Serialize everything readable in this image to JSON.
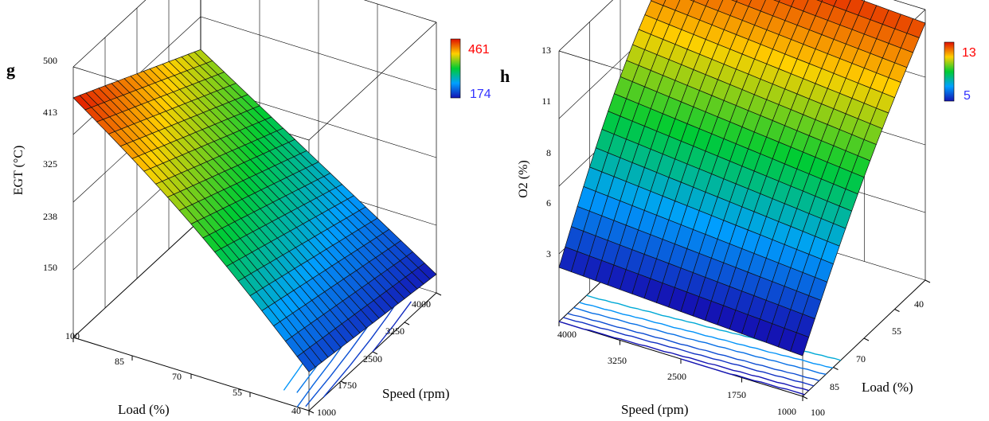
{
  "chart_data": [
    {
      "panel_label": "g",
      "type": "surface3d",
      "zlabel": "EGT (°C)",
      "xlabel": "Load (%)",
      "ylabel": "Speed (rpm)",
      "x_ticks": [
        "100",
        "85",
        "70",
        "55",
        "40"
      ],
      "y_ticks": [
        "1000",
        "1750",
        "2500",
        "3250",
        "4000"
      ],
      "z_ticks": [
        "150",
        "238",
        "325",
        "413",
        "500"
      ],
      "zlim": [
        150,
        500
      ],
      "colorbar": {
        "max": "461",
        "min": "174",
        "max_color": "#ff0000",
        "min_color": "#3333ff"
      },
      "surface_corners": {
        "load100_speed1000": 460,
        "load100_speed4000": 370,
        "load40_speed1000": 200,
        "load40_speed4000": 174
      }
    },
    {
      "panel_label": "h",
      "type": "surface3d",
      "zlabel": "O2 (%)",
      "xlabel": "Load (%)",
      "ylabel": "Speed (rpm)",
      "x_ticks": [
        "40",
        "55",
        "70",
        "85",
        "100"
      ],
      "y_ticks": [
        "4000",
        "3250",
        "2500",
        "1750",
        "1000"
      ],
      "z_ticks": [
        "3",
        "6",
        "8",
        "11",
        "13"
      ],
      "zlim": [
        3,
        13
      ],
      "colorbar": {
        "max": "13",
        "min": "5",
        "max_color": "#ff0000",
        "min_color": "#3333ff"
      },
      "surface_corners": {
        "load40_speed4000": 13,
        "load40_speed1000": 12.5,
        "load100_speed4000": 5,
        "load100_speed1000": 4.5
      }
    }
  ]
}
